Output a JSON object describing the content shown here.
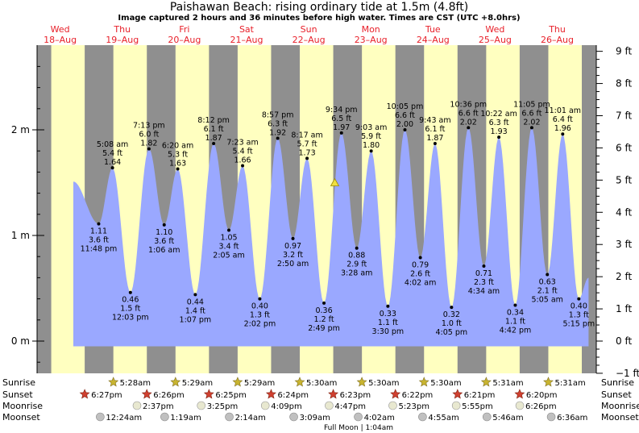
{
  "title": "Paishawan Beach: rising  ordinary tide at 1.5m (4.8ft)",
  "subtitle": "Image captured 2 hours and 36 minutes before high water. Times are CST (UTC +8.0hrs)",
  "colors": {
    "day_text": "#e8202a",
    "water": "#9aa8ff",
    "day": "#ffffc0",
    "night": "#8f8f8f",
    "sun": "#c8b430",
    "sunset": "#d04030",
    "moon": "#e8e8d0",
    "moonset": "#c0c0c0",
    "marker": "#f0e040"
  },
  "days": [
    {
      "name": "Wed",
      "date": "18–Aug"
    },
    {
      "name": "Thu",
      "date": "19–Aug"
    },
    {
      "name": "Fri",
      "date": "20–Aug"
    },
    {
      "name": "Sat",
      "date": "21–Aug"
    },
    {
      "name": "Sun",
      "date": "22–Aug"
    },
    {
      "name": "Mon",
      "date": "23–Aug"
    },
    {
      "name": "Tue",
      "date": "24–Aug"
    },
    {
      "name": "Wed",
      "date": "25–Aug"
    },
    {
      "name": "Thu",
      "date": "26–Aug"
    }
  ],
  "chart_data": {
    "type": "area",
    "xlabel": "",
    "ylabel": "",
    "x_range_hours": [
      0,
      216
    ],
    "y_left": {
      "label_suffix": " m",
      "ticks": [
        0,
        1,
        2
      ],
      "ylim_m": [
        -0.3,
        2.8
      ]
    },
    "y_right": {
      "ticks": [
        "9 ft",
        "8 ft",
        "7 ft",
        "6 ft",
        "5 ft",
        "4 ft",
        "3 ft",
        "2 ft",
        "1 ft",
        "0 ft",
        "−1 ft"
      ],
      "values_ft": [
        9,
        8,
        7,
        6,
        5,
        4,
        3,
        2,
        1,
        0,
        -1
      ]
    },
    "tides": [
      {
        "kind": "low",
        "time": "11:48 pm",
        "m": "1.11",
        "ft": "3.6 ft",
        "h": 23.8,
        "v": 1.11
      },
      {
        "kind": "high",
        "time": "5:08 am",
        "m": "1.64",
        "ft": "5.4 ft",
        "h": 29.13,
        "v": 1.64
      },
      {
        "kind": "low",
        "time": "12:03 pm",
        "m": "0.46",
        "ft": "1.5 ft",
        "h": 36.05,
        "v": 0.46
      },
      {
        "kind": "high",
        "time": "7:13 pm",
        "m": "1.82",
        "ft": "6.0 ft",
        "h": 43.22,
        "v": 1.82
      },
      {
        "kind": "low",
        "time": "1:06 am",
        "m": "1.10",
        "ft": "3.6 ft",
        "h": 49.1,
        "v": 1.1
      },
      {
        "kind": "high",
        "time": "6:20 am",
        "m": "1.63",
        "ft": "5.3 ft",
        "h": 54.33,
        "v": 1.63
      },
      {
        "kind": "low",
        "time": "1:07 pm",
        "m": "0.44",
        "ft": "1.4 ft",
        "h": 61.12,
        "v": 0.44
      },
      {
        "kind": "high",
        "time": "8:12 pm",
        "m": "1.87",
        "ft": "6.1 ft",
        "h": 68.2,
        "v": 1.87
      },
      {
        "kind": "low",
        "time": "2:05 am",
        "m": "1.05",
        "ft": "3.4 ft",
        "h": 74.08,
        "v": 1.05
      },
      {
        "kind": "high",
        "time": "7:23 am",
        "m": "1.66",
        "ft": "5.4 ft",
        "h": 79.38,
        "v": 1.66
      },
      {
        "kind": "low",
        "time": "2:02 pm",
        "m": "0.40",
        "ft": "1.3 ft",
        "h": 86.03,
        "v": 0.4
      },
      {
        "kind": "high",
        "time": "8:57 pm",
        "m": "1.92",
        "ft": "6.3 ft",
        "h": 92.95,
        "v": 1.92
      },
      {
        "kind": "low",
        "time": "2:50 am",
        "m": "0.97",
        "ft": "3.2 ft",
        "h": 98.83,
        "v": 0.97
      },
      {
        "kind": "high",
        "time": "8:17 am",
        "m": "1.73",
        "ft": "5.7 ft",
        "h": 104.28,
        "v": 1.73
      },
      {
        "kind": "low",
        "time": "2:49 pm",
        "m": "0.36",
        "ft": "1.2 ft",
        "h": 110.82,
        "v": 0.36
      },
      {
        "kind": "high",
        "time": "9:34 pm",
        "m": "1.97",
        "ft": "6.5 ft",
        "h": 117.57,
        "v": 1.97
      },
      {
        "kind": "low",
        "time": "3:28 am",
        "m": "0.88",
        "ft": "2.9 ft",
        "h": 123.47,
        "v": 0.88
      },
      {
        "kind": "high",
        "time": "9:03 am",
        "m": "1.80",
        "ft": "5.9 ft",
        "h": 129.05,
        "v": 1.8
      },
      {
        "kind": "low",
        "time": "3:30 pm",
        "m": "0.33",
        "ft": "1.1 ft",
        "h": 135.5,
        "v": 0.33
      },
      {
        "kind": "high",
        "time": "10:05 pm",
        "m": "2.00",
        "ft": "6.6 ft",
        "h": 142.08,
        "v": 2.0
      },
      {
        "kind": "low",
        "time": "4:02 am",
        "m": "0.79",
        "ft": "2.6 ft",
        "h": 148.03,
        "v": 0.79
      },
      {
        "kind": "high",
        "time": "9:43 am",
        "m": "1.87",
        "ft": "6.1 ft",
        "h": 153.72,
        "v": 1.87
      },
      {
        "kind": "low",
        "time": "4:05 pm",
        "m": "0.32",
        "ft": "1.0 ft",
        "h": 160.08,
        "v": 0.32
      },
      {
        "kind": "high",
        "time": "10:36 pm",
        "m": "2.02",
        "ft": "6.6 ft",
        "h": 166.6,
        "v": 2.02
      },
      {
        "kind": "low",
        "time": "4:34 am",
        "m": "0.71",
        "ft": "2.3 ft",
        "h": 172.57,
        "v": 0.71
      },
      {
        "kind": "high",
        "time": "10:22 am",
        "m": "1.93",
        "ft": "6.3 ft",
        "h": 178.37,
        "v": 1.93
      },
      {
        "kind": "low",
        "time": "4:42 pm",
        "m": "0.34",
        "ft": "1.1 ft",
        "h": 184.7,
        "v": 0.34
      },
      {
        "kind": "high",
        "time": "11:05 pm",
        "m": "2.02",
        "ft": "6.6 ft",
        "h": 191.08,
        "v": 2.02
      },
      {
        "kind": "low",
        "time": "5:05 am",
        "m": "0.63",
        "ft": "2.1 ft",
        "h": 197.08,
        "v": 0.63
      },
      {
        "kind": "high",
        "time": "11:01 am",
        "m": "1.96",
        "ft": "6.4 ft",
        "h": 203.02,
        "v": 1.96
      },
      {
        "kind": "low",
        "time": "5:15 pm",
        "m": "0.40",
        "ft": "1.3 ft",
        "h": 209.25,
        "v": 0.4
      }
    ],
    "current_marker_h": 115.0,
    "current_marker_v": 1.5
  },
  "bottom": {
    "row_labels": [
      "Sunrise",
      "Sunset",
      "Moonrise",
      "Moonset"
    ],
    "sunrise": [
      "5:28am",
      "5:29am",
      "5:29am",
      "5:30am",
      "5:30am",
      "5:30am",
      "5:31am",
      "5:31am"
    ],
    "sunset": [
      "6:27pm",
      "6:26pm",
      "6:25pm",
      "6:24pm",
      "6:23pm",
      "6:22pm",
      "6:21pm",
      "6:20pm"
    ],
    "moonrise": [
      "2:37pm",
      "3:25pm",
      "4:09pm",
      "4:47pm",
      "5:23pm",
      "5:55pm",
      "6:26pm"
    ],
    "moonset": [
      "12:24am",
      "1:19am",
      "2:14am",
      "3:09am",
      "4:02am",
      "4:55am",
      "5:46am",
      "6:36am"
    ],
    "full_moon": "Full Moon | 1:04am"
  }
}
